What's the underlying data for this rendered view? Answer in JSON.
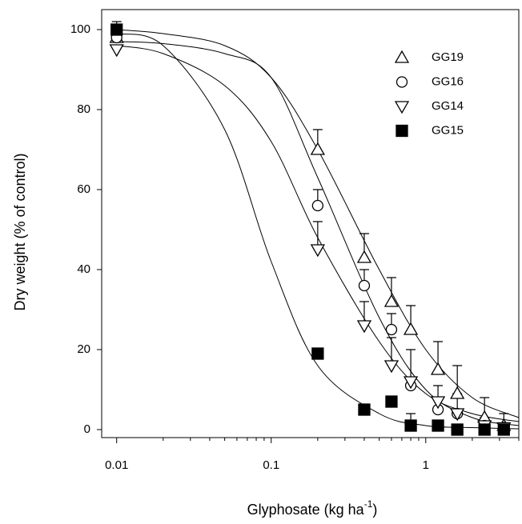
{
  "chart_data": {
    "type": "scatter",
    "x_label": [
      "Glyphosate (kg ha",
      "-1",
      ")"
    ],
    "y_label": "Dry weight (% of control)",
    "log_x": true,
    "xlim": [
      0.008,
      4
    ],
    "xticks": [
      0.01,
      0.1,
      1
    ],
    "xminorticks": [
      0.02,
      0.03,
      0.04,
      0.05,
      0.06,
      0.07,
      0.08,
      0.09,
      0.2,
      0.3,
      0.4,
      0.5,
      0.6,
      0.7,
      0.8,
      0.9,
      2,
      3,
      4
    ],
    "ylim": [
      -2,
      105
    ],
    "yticks": [
      0,
      20,
      40,
      60,
      80,
      100
    ],
    "legend": "top-right",
    "x": [
      0.01,
      0.2,
      0.4,
      0.6,
      0.8,
      1.2,
      1.6,
      2.4,
      3.2
    ],
    "series": [
      {
        "name": "GG19",
        "marker": "triangle-up",
        "color": "#000000",
        "filled": false,
        "values": [
          98,
          70,
          43,
          32,
          25,
          15,
          9,
          3,
          1
        ],
        "errors": [
          null,
          5,
          6,
          6,
          6,
          7,
          7,
          5,
          3
        ],
        "curve": {
          "x": [
            0.01,
            0.02,
            0.05,
            0.1,
            0.2,
            0.5,
            1,
            2,
            4
          ],
          "values": [
            100,
            99,
            96,
            88,
            70,
            40,
            20,
            8,
            3
          ]
        }
      },
      {
        "name": "GG16",
        "marker": "circle",
        "color": "#000000",
        "filled": false,
        "values": [
          98,
          56,
          36,
          25,
          11,
          5,
          4,
          1,
          0.5
        ],
        "errors": [
          null,
          4,
          4,
          4,
          null,
          null,
          null,
          null,
          null
        ],
        "curve": {
          "x": [
            0.01,
            0.02,
            0.05,
            0.1,
            0.2,
            0.5,
            1,
            2,
            4
          ],
          "values": [
            97,
            96.5,
            94,
            88,
            63,
            28,
            10,
            3,
            1
          ]
        }
      },
      {
        "name": "GG14",
        "marker": "triangle-down",
        "color": "#000000",
        "filled": false,
        "values": [
          95,
          45,
          26,
          16,
          12,
          7,
          4,
          1,
          0.5
        ],
        "errors": [
          null,
          7,
          6,
          7,
          8,
          4,
          5,
          2,
          null
        ],
        "curve": {
          "x": [
            0.01,
            0.02,
            0.05,
            0.1,
            0.2,
            0.5,
            1,
            2,
            4
          ],
          "values": [
            96,
            94,
            86,
            72,
            48,
            22,
            9,
            4,
            2
          ]
        }
      },
      {
        "name": "GG15",
        "marker": "square",
        "color": "#000000",
        "filled": true,
        "values": [
          100,
          19,
          5,
          7,
          1,
          1,
          0,
          0,
          0
        ],
        "errors": [
          2,
          null,
          null,
          null,
          3,
          null,
          null,
          null,
          null
        ],
        "curve": {
          "x": [
            0.01,
            0.02,
            0.05,
            0.1,
            0.2,
            0.5,
            1,
            2,
            4
          ],
          "values": [
            99,
            96,
            75,
            42,
            16,
            4,
            1,
            0.5,
            0.2
          ]
        }
      }
    ]
  }
}
